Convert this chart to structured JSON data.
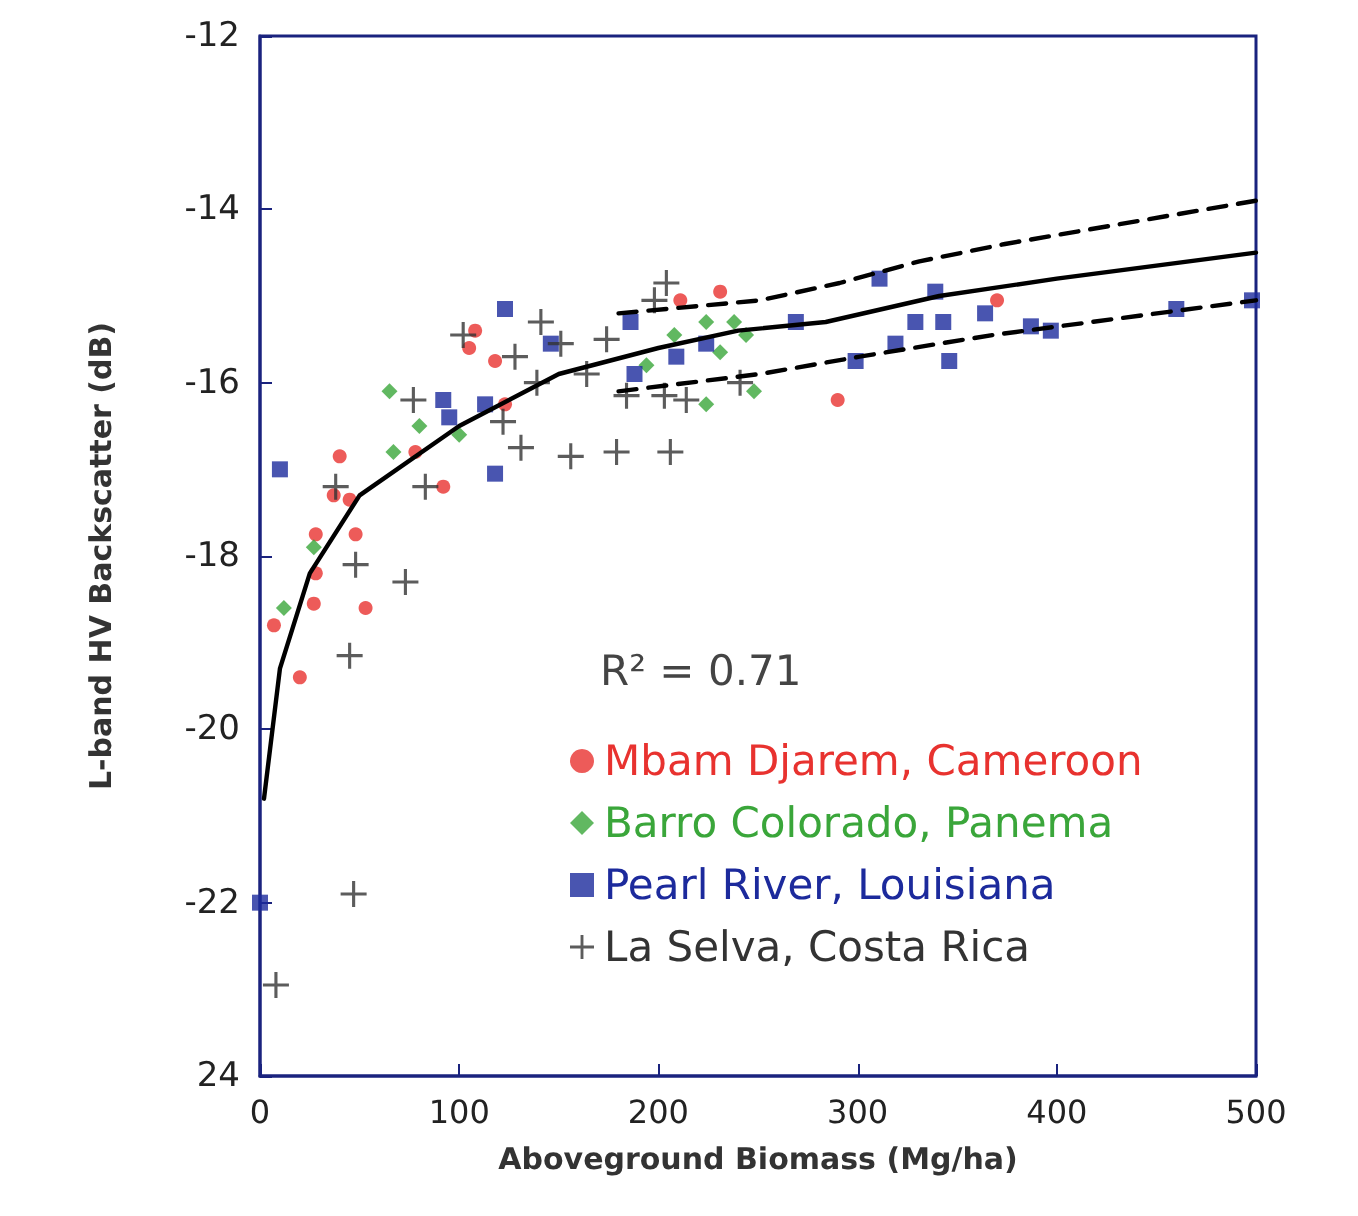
{
  "chart_data": {
    "type": "scatter",
    "xlabel": "Aboveground Biomass (Mg/ha)",
    "ylabel": "L-band HV Backscatter (dB)",
    "xlim": [
      0,
      500
    ],
    "xticks": [
      0,
      100,
      200,
      300,
      400,
      500
    ],
    "ylim": [
      -24,
      -12
    ],
    "yticks": [
      {
        "value": -24,
        "label": "24"
      },
      -22,
      -20,
      -18,
      -16,
      -14,
      -12
    ],
    "grid": false,
    "legend": "bottom right",
    "annotations": [
      "R² = 0.71"
    ],
    "series": [
      {
        "name": "Mbam Djarem, Cameroon",
        "color": "#e8322f",
        "marker": "circle",
        "x": [
          40,
          37,
          45,
          28,
          48,
          28,
          27,
          7,
          53,
          20,
          78,
          92,
          108,
          105,
          118,
          123,
          146,
          211,
          231,
          290,
          370
        ],
        "values": [
          -16.85,
          -17.3,
          -17.35,
          -17.75,
          -17.75,
          -18.2,
          -18.55,
          -18.8,
          -18.6,
          -19.4,
          -16.8,
          -17.2,
          -15.4,
          -15.6,
          -15.75,
          -16.25,
          null,
          -15.05,
          -14.95,
          -16.2,
          -15.05
        ]
      },
      {
        "name": "Barro Colorado, Panema",
        "color": "#3aa63a",
        "marker": "diamond",
        "x": [
          65,
          80,
          67,
          100,
          27,
          12,
          224,
          231,
          244,
          224,
          194,
          208,
          238,
          248
        ],
        "values": [
          -16.1,
          -16.5,
          -16.8,
          -16.6,
          -17.9,
          -18.6,
          -15.3,
          -15.65,
          -15.45,
          -16.25,
          -15.8,
          -15.45,
          -15.3,
          -16.1
        ]
      },
      {
        "name": "Pearl River, Louisiana",
        "color": "#1c2a9c",
        "marker": "square",
        "x": [
          0,
          10,
          123,
          92,
          95,
          113,
          118,
          146,
          186,
          188,
          224,
          209,
          269,
          311,
          339,
          329,
          343,
          319,
          299,
          346,
          364,
          387,
          397,
          460,
          498
        ],
        "values": [
          -22.0,
          -17.0,
          -15.15,
          -16.2,
          -16.4,
          -16.25,
          -17.05,
          -15.55,
          -15.3,
          -15.9,
          -15.55,
          -15.7,
          -15.3,
          -14.8,
          -14.95,
          -15.3,
          -15.3,
          -15.55,
          -15.75,
          -15.75,
          -15.2,
          -15.35,
          -15.4,
          -15.15,
          -15.05
        ]
      },
      {
        "name": "La Selva, Costa Rica",
        "color": "#333333",
        "marker": "cross",
        "x": [
          45,
          47,
          8,
          48,
          73,
          38,
          77,
          102,
          83,
          156,
          179,
          206,
          141,
          128,
          151,
          198,
          204,
          174,
          164,
          139,
          122,
          131,
          203,
          214,
          241,
          184
        ],
        "values": [
          -19.15,
          -21.9,
          -22.95,
          -18.1,
          -18.3,
          -17.2,
          -16.2,
          -15.45,
          -17.2,
          -16.85,
          -16.8,
          -16.8,
          -15.3,
          -15.7,
          -15.55,
          -15.05,
          -14.85,
          -15.5,
          -15.9,
          -16.0,
          -16.45,
          -16.75,
          -16.15,
          -16.2,
          -16.0,
          -16.15
        ]
      },
      {
        "type": "line",
        "color": "#000000",
        "marker": "none",
        "line_style": "solid",
        "x": [
          2,
          10,
          25,
          50,
          100,
          150,
          200,
          240,
          284,
          341,
          400,
          500
        ],
        "values": [
          -20.8,
          -19.3,
          -18.2,
          -17.3,
          -16.5,
          -15.9,
          -15.6,
          -15.4,
          -15.3,
          -15.0,
          -14.8,
          -14.5
        ]
      },
      {
        "type": "line",
        "color": "#000000",
        "marker": "none",
        "line_style": "dashed",
        "x": [
          180,
          251,
          291,
          331,
          374,
          500
        ],
        "values": [
          -15.2,
          -15.05,
          -14.85,
          -14.6,
          -14.4,
          -13.9
        ]
      },
      {
        "type": "line",
        "color": "#000000",
        "marker": "none",
        "line_style": "dashed",
        "x": [
          180,
          251,
          301,
          341,
          368,
          500
        ],
        "values": [
          -16.1,
          -15.9,
          -15.7,
          -15.55,
          -15.45,
          -15.05
        ]
      }
    ]
  }
}
